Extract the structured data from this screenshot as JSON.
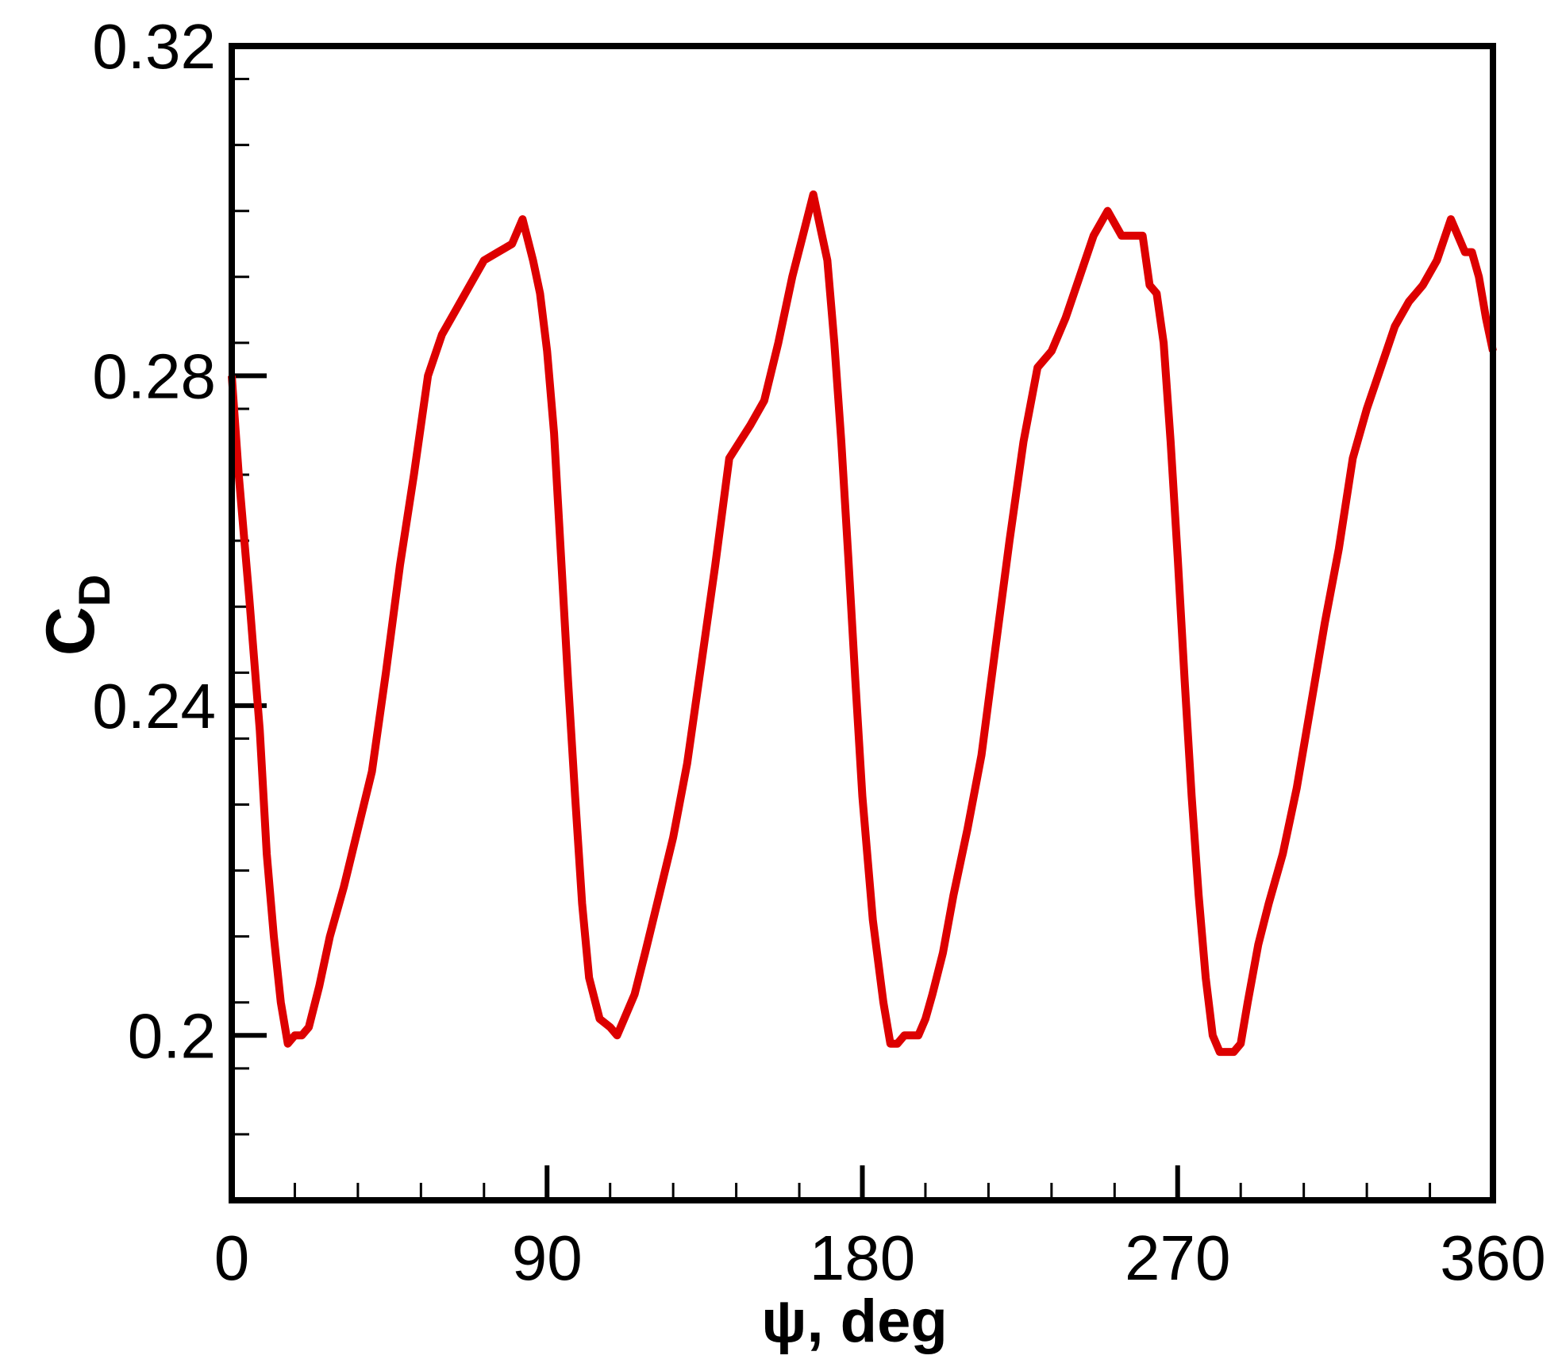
{
  "chart_data": {
    "type": "line",
    "title": "",
    "xlabel": "ψ, deg",
    "ylabel": {
      "main": "C",
      "sub": "D"
    },
    "xlim": [
      0,
      360
    ],
    "ylim": [
      0.18,
      0.32
    ],
    "x_ticks": [
      0,
      90,
      180,
      270,
      360
    ],
    "x_tick_labels": [
      "0",
      "90",
      "180",
      "270",
      "360"
    ],
    "x_minor_step": 18,
    "y_ticks": [
      0.2,
      0.24,
      0.28,
      0.32
    ],
    "y_tick_labels": [
      "0.2",
      "0.24",
      "0.28",
      "0.32"
    ],
    "y_minor_step": 0.008,
    "grid": false,
    "legend": "none",
    "series": [
      {
        "color": "#dd0000",
        "x": [
          0,
          2,
          5,
          8,
          10,
          12,
          14,
          16,
          18,
          20,
          22,
          25,
          28,
          32,
          36,
          40,
          44,
          48,
          52,
          56,
          60,
          64,
          68,
          72,
          76,
          80,
          83,
          86,
          88,
          90,
          92,
          94,
          96,
          98,
          100,
          102,
          105,
          108,
          110,
          112,
          115,
          118,
          122,
          126,
          130,
          134,
          138,
          142,
          145,
          148,
          152,
          156,
          160,
          163,
          166,
          168,
          170,
          172,
          174,
          176,
          178,
          180,
          183,
          186,
          188,
          190,
          192,
          194,
          196,
          198,
          200,
          203,
          206,
          210,
          214,
          218,
          222,
          226,
          230,
          234,
          238,
          242,
          246,
          250,
          254,
          257,
          260,
          262,
          264,
          266,
          268,
          270,
          272,
          274,
          276,
          278,
          280,
          282,
          284,
          286,
          288,
          290,
          293,
          296,
          300,
          304,
          308,
          312,
          316,
          320,
          324,
          328,
          332,
          336,
          340,
          344,
          348,
          350,
          352,
          354,
          356,
          358,
          360
        ],
        "y": [
          0.28,
          0.268,
          0.253,
          0.237,
          0.222,
          0.212,
          0.204,
          0.199,
          0.2,
          0.2,
          0.201,
          0.206,
          0.212,
          0.218,
          0.225,
          0.232,
          0.244,
          0.257,
          0.268,
          0.28,
          0.285,
          0.288,
          0.291,
          0.294,
          0.295,
          0.296,
          0.299,
          0.294,
          0.29,
          0.283,
          0.273,
          0.258,
          0.243,
          0.229,
          0.216,
          0.207,
          0.202,
          0.201,
          0.2,
          0.202,
          0.205,
          0.21,
          0.217,
          0.224,
          0.233,
          0.245,
          0.257,
          0.27,
          0.272,
          0.274,
          0.277,
          0.284,
          0.292,
          0.297,
          0.302,
          0.298,
          0.294,
          0.284,
          0.272,
          0.258,
          0.243,
          0.229,
          0.214,
          0.204,
          0.199,
          0.199,
          0.2,
          0.2,
          0.2,
          0.202,
          0.205,
          0.21,
          0.217,
          0.225,
          0.234,
          0.247,
          0.26,
          0.272,
          0.281,
          0.283,
          0.287,
          0.292,
          0.297,
          0.3,
          0.297,
          0.297,
          0.297,
          0.291,
          0.29,
          0.284,
          0.272,
          0.258,
          0.243,
          0.229,
          0.217,
          0.207,
          0.2,
          0.198,
          0.198,
          0.198,
          0.199,
          0.204,
          0.211,
          0.216,
          0.222,
          0.23,
          0.24,
          0.25,
          0.259,
          0.27,
          0.276,
          0.281,
          0.286,
          0.289,
          0.291,
          0.294,
          0.299,
          0.297,
          0.295,
          0.295,
          0.292,
          0.287,
          0.283
        ]
      }
    ]
  }
}
